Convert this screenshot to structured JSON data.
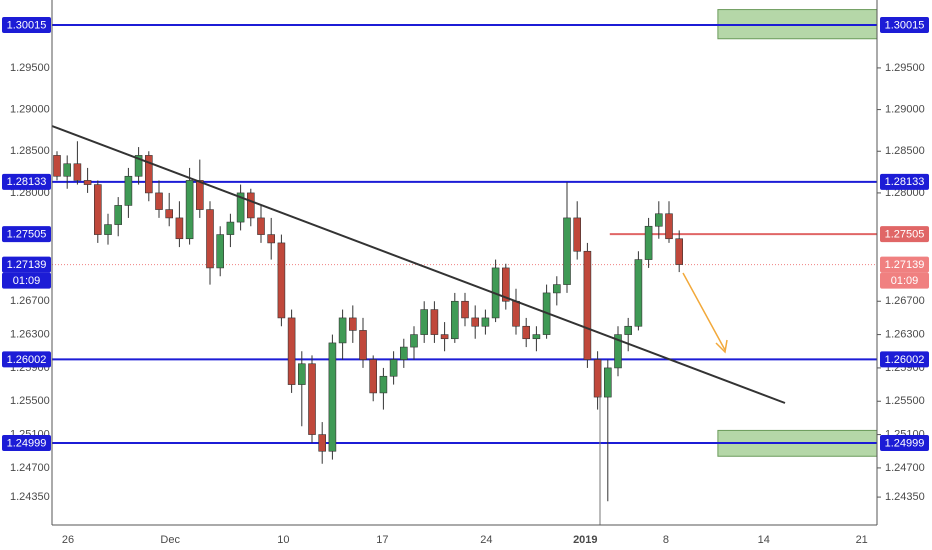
{
  "chart_data": {
    "type": "candlestick",
    "open": [
      1.2845,
      1.282,
      1.2835,
      1.2815,
      1.281,
      1.275,
      1.2762,
      1.2785,
      1.282,
      1.2845,
      1.28,
      1.278,
      1.277,
      1.2745,
      1.2815,
      1.278,
      1.271,
      1.275,
      1.2765,
      1.28,
      1.277,
      1.275,
      1.274,
      1.265,
      1.257,
      1.2595,
      1.251,
      1.249,
      1.262,
      1.265,
      1.2635,
      1.26,
      1.256,
      1.258,
      1.26,
      1.2615,
      1.263,
      1.266,
      1.263,
      1.2625,
      1.267,
      1.265,
      1.264,
      1.265,
      1.271,
      1.267,
      1.264,
      1.2625,
      1.263,
      1.268,
      1.269,
      1.277,
      1.273,
      1.26,
      1.2555,
      1.259,
      1.263,
      1.264,
      1.272,
      1.276,
      1.2775,
      1.2745
    ],
    "high": [
      1.285,
      1.2845,
      1.2862,
      1.283,
      1.2815,
      1.2775,
      1.2795,
      1.283,
      1.2855,
      1.285,
      1.2815,
      1.28,
      1.279,
      1.283,
      1.284,
      1.279,
      1.276,
      1.2775,
      1.281,
      1.2805,
      1.2785,
      1.277,
      1.275,
      1.266,
      1.261,
      1.2605,
      1.2525,
      1.263,
      1.266,
      1.2665,
      1.265,
      1.2605,
      1.259,
      1.261,
      1.2625,
      1.264,
      1.267,
      1.267,
      1.2645,
      1.268,
      1.268,
      1.2665,
      1.266,
      1.272,
      1.2715,
      1.2685,
      1.265,
      1.264,
      1.269,
      1.27,
      1.2813,
      1.279,
      1.274,
      1.261,
      1.26,
      1.264,
      1.265,
      1.273,
      1.277,
      1.279,
      1.279,
      1.2755
    ],
    "low": [
      1.2815,
      1.2805,
      1.281,
      1.28,
      1.274,
      1.2738,
      1.2748,
      1.277,
      1.281,
      1.279,
      1.277,
      1.276,
      1.2735,
      1.2738,
      1.277,
      1.269,
      1.27,
      1.2735,
      1.2755,
      1.276,
      1.274,
      1.272,
      1.264,
      1.256,
      1.252,
      1.25,
      1.2475,
      1.248,
      1.26,
      1.262,
      1.259,
      1.255,
      1.254,
      1.257,
      1.259,
      1.26,
      1.262,
      1.262,
      1.261,
      1.262,
      1.264,
      1.2625,
      1.263,
      1.2645,
      1.266,
      1.263,
      1.2615,
      1.261,
      1.2625,
      1.2665,
      1.268,
      1.272,
      1.259,
      1.254,
      1.243,
      1.258,
      1.261,
      1.2635,
      1.271,
      1.2745,
      1.274,
      1.2705
    ],
    "close": [
      1.282,
      1.2835,
      1.2815,
      1.281,
      1.275,
      1.2762,
      1.2785,
      1.282,
      1.2845,
      1.28,
      1.278,
      1.277,
      1.2745,
      1.2815,
      1.278,
      1.271,
      1.275,
      1.2765,
      1.28,
      1.277,
      1.275,
      1.274,
      1.265,
      1.257,
      1.2595,
      1.251,
      1.249,
      1.262,
      1.265,
      1.2635,
      1.26,
      1.256,
      1.258,
      1.26,
      1.2615,
      1.263,
      1.266,
      1.263,
      1.2625,
      1.267,
      1.265,
      1.264,
      1.265,
      1.271,
      1.267,
      1.264,
      1.2625,
      1.263,
      1.268,
      1.269,
      1.277,
      1.273,
      1.26,
      1.2555,
      1.259,
      1.263,
      1.264,
      1.272,
      1.276,
      1.2775,
      1.2745,
      1.2714
    ],
    "up_color": "#3f9a55",
    "down_color": "#c0483b",
    "xlim": [
      -0.49,
      80.4
    ],
    "xticks": [
      {
        "value": 1.08,
        "label": "26"
      },
      {
        "value": 11.1,
        "label": "Dec"
      },
      {
        "value": 22.2,
        "label": "10"
      },
      {
        "value": 31.9,
        "label": "17"
      },
      {
        "value": 42.1,
        "label": "24"
      },
      {
        "value": 51.8,
        "label": "2019"
      },
      {
        "value": 59.7,
        "label": "8"
      },
      {
        "value": 69.3,
        "label": "14"
      },
      {
        "value": 78.9,
        "label": "21"
      }
    ],
    "ylim": [
      1.24015,
      1.30315
    ],
    "yticks": [
      {
        "value": 1.295,
        "label": "1.29500"
      },
      {
        "value": 1.29,
        "label": "1.29000"
      },
      {
        "value": 1.285,
        "label": "1.28500"
      },
      {
        "value": 1.28,
        "label": "1.28000"
      },
      {
        "value": 1.267,
        "label": "1.26700"
      },
      {
        "value": 1.263,
        "label": "1.26300"
      },
      {
        "value": 1.259,
        "label": "1.25900"
      },
      {
        "value": 1.255,
        "label": "1.25500"
      },
      {
        "value": 1.251,
        "label": "1.25100"
      },
      {
        "value": 1.247,
        "label": "1.24700"
      },
      {
        "value": 1.2435,
        "label": "1.24350"
      }
    ],
    "levels": [
      {
        "value": 1.30015,
        "label": "1.30015",
        "color": "#1c1cd6"
      },
      {
        "value": 1.28133,
        "label": "1.28133",
        "color": "#1c1cd6"
      },
      {
        "value": 1.26002,
        "label": "1.26002",
        "color": "#1c1cd6"
      },
      {
        "value": 1.24999,
        "label": "1.24999",
        "color": "#1c1cd6"
      },
      {
        "value": 1.27505,
        "label": "1.27505",
        "color": "#e06666",
        "start": 54.2
      }
    ],
    "zones": [
      {
        "low": 1.2985,
        "high": 1.302,
        "start": 64.8,
        "color": "#b5d7a8"
      },
      {
        "low": 1.2484,
        "high": 1.2515,
        "start": 64.8,
        "color": "#b5d7a8"
      }
    ],
    "last_price": {
      "value": 1.27139,
      "label": "1.27139",
      "countdown": "01:09",
      "color": "#f08080"
    }
  }
}
